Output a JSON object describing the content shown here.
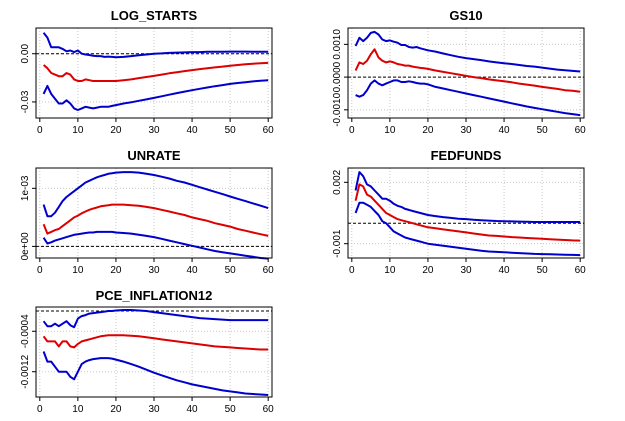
{
  "chart_data": [
    {
      "type": "line",
      "title": "LOG_STARTS",
      "x": [
        1,
        2,
        3,
        4,
        5,
        6,
        7,
        8,
        9,
        10,
        11,
        12,
        13,
        14,
        15,
        16,
        17,
        18,
        19,
        20,
        22,
        24,
        26,
        28,
        30,
        32,
        34,
        36,
        38,
        40,
        42,
        44,
        46,
        48,
        50,
        52,
        54,
        56,
        58,
        60
      ],
      "xticks": [
        0,
        10,
        20,
        30,
        40,
        50,
        60
      ],
      "yticks": [
        0.0,
        -0.03
      ],
      "ytick_labels": [
        "0.00",
        "-0.03"
      ],
      "ylim": [
        -0.04,
        0.016
      ],
      "xlim": [
        -1,
        61
      ],
      "zero_line": true,
      "grid": true,
      "series": [
        {
          "color": "#0000cc",
          "values": [
            0.013,
            0.01,
            0.004,
            0.004,
            0.004,
            0.003,
            0.0015,
            0.002,
            0.001,
            0.002,
            0.0,
            -0.0005,
            -0.0008,
            -0.0013,
            -0.0015,
            -0.0015,
            -0.002,
            -0.0018,
            -0.002,
            -0.0022,
            -0.002,
            -0.0015,
            -0.001,
            -0.0005,
            0.0,
            0.0002,
            0.0005,
            0.0007,
            0.0008,
            0.001,
            0.001,
            0.0012,
            0.0012,
            0.0012,
            0.0013,
            0.0013,
            0.0013,
            0.0012,
            0.0012,
            0.0012
          ]
        },
        {
          "color": "#dd0000",
          "values": [
            -0.007,
            -0.009,
            -0.012,
            -0.013,
            -0.014,
            -0.014,
            -0.012,
            -0.013,
            -0.016,
            -0.017,
            -0.017,
            -0.016,
            -0.0165,
            -0.017,
            -0.017,
            -0.017,
            -0.017,
            -0.017,
            -0.017,
            -0.017,
            -0.0165,
            -0.016,
            -0.0152,
            -0.0145,
            -0.0138,
            -0.013,
            -0.0122,
            -0.0115,
            -0.0108,
            -0.0102,
            -0.0096,
            -0.009,
            -0.0085,
            -0.008,
            -0.0075,
            -0.007,
            -0.0066,
            -0.0062,
            -0.0059,
            -0.0057
          ]
        },
        {
          "color": "#0000cc",
          "values": [
            -0.025,
            -0.02,
            -0.025,
            -0.028,
            -0.031,
            -0.031,
            -0.029,
            -0.031,
            -0.034,
            -0.035,
            -0.034,
            -0.033,
            -0.0335,
            -0.034,
            -0.0335,
            -0.033,
            -0.033,
            -0.033,
            -0.0325,
            -0.032,
            -0.031,
            -0.0302,
            -0.0293,
            -0.0284,
            -0.0275,
            -0.0265,
            -0.0255,
            -0.0245,
            -0.0236,
            -0.0227,
            -0.0218,
            -0.021,
            -0.0202,
            -0.0195,
            -0.0188,
            -0.0182,
            -0.0177,
            -0.0172,
            -0.0168,
            -0.0165
          ]
        }
      ]
    },
    {
      "type": "line",
      "title": "GS10",
      "x": [
        1,
        2,
        3,
        4,
        5,
        6,
        7,
        8,
        9,
        10,
        11,
        12,
        13,
        14,
        15,
        16,
        17,
        18,
        19,
        20,
        22,
        24,
        26,
        28,
        30,
        32,
        34,
        36,
        38,
        40,
        42,
        44,
        46,
        48,
        50,
        52,
        54,
        56,
        58,
        60
      ],
      "xticks": [
        0,
        10,
        20,
        30,
        40,
        50,
        60
      ],
      "yticks": [
        0.001,
        0.0,
        -0.001
      ],
      "ytick_labels": [
        "0.0010",
        "0.0000",
        "-0.0010"
      ],
      "ylim": [
        -0.00125,
        0.0015
      ],
      "xlim": [
        -1,
        61
      ],
      "zero_line": true,
      "grid": true,
      "series": [
        {
          "color": "#0000cc",
          "values": [
            0.00095,
            0.0012,
            0.0011,
            0.0012,
            0.00135,
            0.00138,
            0.0013,
            0.00115,
            0.0011,
            0.00112,
            0.00108,
            0.00105,
            0.00098,
            0.00098,
            0.00092,
            0.0009,
            0.00092,
            0.00088,
            0.00085,
            0.00082,
            0.00078,
            0.00072,
            0.00067,
            0.00062,
            0.00058,
            0.00055,
            0.00052,
            0.00048,
            0.00045,
            0.00042,
            0.0004,
            0.00037,
            0.00034,
            0.00032,
            0.00029,
            0.00026,
            0.00023,
            0.00021,
            0.00019,
            0.00017
          ]
        },
        {
          "color": "#dd0000",
          "values": [
            0.0002,
            0.00045,
            0.0004,
            0.0005,
            0.0007,
            0.00085,
            0.0006,
            0.0005,
            0.00045,
            0.00048,
            0.00045,
            0.0004,
            0.00038,
            0.00035,
            0.00035,
            0.00032,
            0.0003,
            0.00028,
            0.00027,
            0.00025,
            0.0002,
            0.00016,
            0.00012,
            8e-05,
            4e-05,
            0.0,
            -3e-05,
            -7e-05,
            -0.0001,
            -0.00013,
            -0.00016,
            -0.0002,
            -0.00023,
            -0.00026,
            -0.0003,
            -0.00033,
            -0.00036,
            -0.0004,
            -0.00042,
            -0.00045
          ]
        },
        {
          "color": "#0000cc",
          "values": [
            -0.00055,
            -0.0006,
            -0.00055,
            -0.0004,
            -0.0002,
            -0.0001,
            -0.0002,
            -0.00025,
            -0.0002,
            -0.00015,
            -0.0001,
            -0.0001,
            -0.00015,
            -0.00015,
            -0.00013,
            -0.00015,
            -0.00018,
            -0.0002,
            -0.0002,
            -0.00022,
            -0.0003,
            -0.00035,
            -0.0004,
            -0.00045,
            -0.0005,
            -0.00055,
            -0.0006,
            -0.00065,
            -0.0007,
            -0.00075,
            -0.0008,
            -0.00085,
            -0.0009,
            -0.00094,
            -0.00098,
            -0.00102,
            -0.00106,
            -0.0011,
            -0.00113,
            -0.00116
          ]
        }
      ]
    },
    {
      "type": "line",
      "title": "UNRATE",
      "x": [
        1,
        2,
        3,
        4,
        5,
        6,
        7,
        8,
        9,
        10,
        11,
        12,
        13,
        14,
        15,
        16,
        17,
        18,
        19,
        20,
        22,
        24,
        26,
        28,
        30,
        32,
        34,
        36,
        38,
        40,
        42,
        44,
        46,
        48,
        50,
        52,
        54,
        56,
        58,
        60
      ],
      "xticks": [
        0,
        10,
        20,
        30,
        40,
        50,
        60
      ],
      "yticks": [
        0.001,
        0.0
      ],
      "ytick_labels": [
        "1e-03",
        "0e+00"
      ],
      "ylim": [
        -0.0002,
        0.00135
      ],
      "xlim": [
        -1,
        61
      ],
      "zero_line": true,
      "grid": true,
      "series": [
        {
          "color": "#0000cc",
          "values": [
            0.00072,
            0.00052,
            0.00052,
            0.00058,
            0.00068,
            0.00078,
            0.00085,
            0.0009,
            0.00095,
            0.001,
            0.00105,
            0.0011,
            0.00113,
            0.00116,
            0.00119,
            0.00121,
            0.00123,
            0.00125,
            0.00126,
            0.00127,
            0.00128,
            0.00128,
            0.00127,
            0.00125,
            0.00123,
            0.0012,
            0.00117,
            0.00113,
            0.0011,
            0.00106,
            0.00102,
            0.00098,
            0.00094,
            0.0009,
            0.00086,
            0.00082,
            0.00078,
            0.00074,
            0.0007,
            0.00066
          ]
        },
        {
          "color": "#dd0000",
          "values": [
            0.00038,
            0.00022,
            0.00025,
            0.00028,
            0.0003,
            0.00035,
            0.0004,
            0.00045,
            0.0005,
            0.00053,
            0.00057,
            0.0006,
            0.00063,
            0.00065,
            0.00067,
            0.00069,
            0.0007,
            0.00071,
            0.00072,
            0.00072,
            0.00072,
            0.00071,
            0.0007,
            0.00068,
            0.00066,
            0.00063,
            0.0006,
            0.00057,
            0.00054,
            0.0005,
            0.00047,
            0.00044,
            0.0004,
            0.00037,
            0.00034,
            0.0003,
            0.00027,
            0.00024,
            0.00021,
            0.00018
          ]
        },
        {
          "color": "#0000cc",
          "values": [
            0.00015,
            5e-05,
            7e-05,
            0.0001,
            0.00012,
            0.00014,
            0.00016,
            0.00018,
            0.0002,
            0.00021,
            0.00022,
            0.00023,
            0.00024,
            0.00024,
            0.00025,
            0.00025,
            0.00025,
            0.00025,
            0.00025,
            0.00024,
            0.00023,
            0.00022,
            0.0002,
            0.00018,
            0.00016,
            0.00013,
            0.0001,
            7e-05,
            4e-05,
            1e-05,
            -2e-05,
            -5e-05,
            -8e-05,
            -0.0001,
            -0.00012,
            -0.00014,
            -0.00016,
            -0.00018,
            -0.0002,
            -0.00021
          ]
        }
      ]
    },
    {
      "type": "line",
      "title": "FEDFUNDS",
      "x": [
        1,
        2,
        3,
        4,
        5,
        6,
        7,
        8,
        9,
        10,
        11,
        12,
        13,
        14,
        15,
        16,
        17,
        18,
        19,
        20,
        22,
        24,
        26,
        28,
        30,
        32,
        34,
        36,
        38,
        40,
        42,
        44,
        46,
        48,
        50,
        52,
        54,
        56,
        58,
        60
      ],
      "xticks": [
        0,
        10,
        20,
        30,
        40,
        50,
        60
      ],
      "yticks": [
        0.002,
        -0.001
      ],
      "ytick_labels": [
        "0.002",
        "-0.001"
      ],
      "ylim": [
        -0.0017,
        0.0027
      ],
      "xlim": [
        -1,
        61
      ],
      "zero_line": true,
      "grid": true,
      "series": [
        {
          "color": "#0000cc",
          "values": [
            0.0016,
            0.0025,
            0.0023,
            0.0019,
            0.0018,
            0.0016,
            0.0014,
            0.0012,
            0.0012,
            0.0011,
            0.00095,
            0.00085,
            0.0008,
            0.0007,
            0.00065,
            0.0006,
            0.00055,
            0.0005,
            0.00045,
            0.0004,
            0.00035,
            0.0003,
            0.00026,
            0.00022,
            0.0002,
            0.00017,
            0.00015,
            0.00013,
            0.00011,
            0.0001,
            9e-05,
            8e-05,
            7e-05,
            6e-05,
            6e-05,
            6e-05,
            6e-05,
            6e-05,
            6e-05,
            6e-05
          ]
        },
        {
          "color": "#dd0000",
          "values": [
            0.0011,
            0.0019,
            0.0018,
            0.0014,
            0.0013,
            0.0011,
            0.0009,
            0.0007,
            0.0005,
            0.0004,
            0.0003,
            0.0002,
            0.00015,
            0.0001,
            5e-05,
            0.0,
            -5e-05,
            -0.0001,
            -0.00015,
            -0.0002,
            -0.00025,
            -0.0003,
            -0.00035,
            -0.0004,
            -0.00045,
            -0.0005,
            -0.00055,
            -0.0006,
            -0.00062,
            -0.00065,
            -0.00068,
            -0.0007,
            -0.00072,
            -0.00074,
            -0.00076,
            -0.00078,
            -0.0008,
            -0.00082,
            -0.00084,
            -0.00085
          ]
        },
        {
          "color": "#0000cc",
          "values": [
            0.0005,
            0.001,
            0.001,
            0.0009,
            0.0008,
            0.0006,
            0.0004,
            0.0001,
            0.0,
            -0.0002,
            -0.0004,
            -0.0005,
            -0.0006,
            -0.0007,
            -0.00075,
            -0.0008,
            -0.00085,
            -0.0009,
            -0.00095,
            -0.001,
            -0.00105,
            -0.0011,
            -0.00115,
            -0.0012,
            -0.00125,
            -0.0013,
            -0.00135,
            -0.00138,
            -0.0014,
            -0.00142,
            -0.00144,
            -0.00146,
            -0.00148,
            -0.0015,
            -0.00151,
            -0.00152,
            -0.00153,
            -0.00154,
            -0.00155,
            -0.00156
          ]
        }
      ]
    },
    {
      "type": "line",
      "title": "PCE_INFLATION12",
      "x": [
        1,
        2,
        3,
        4,
        5,
        6,
        7,
        8,
        9,
        10,
        11,
        12,
        13,
        14,
        15,
        16,
        17,
        18,
        19,
        20,
        22,
        24,
        26,
        28,
        30,
        32,
        34,
        36,
        38,
        40,
        42,
        44,
        46,
        48,
        50,
        52,
        54,
        56,
        58,
        60
      ],
      "xticks": [
        0,
        10,
        20,
        30,
        40,
        50,
        60
      ],
      "yticks": [
        -0.0004,
        -0.0012
      ],
      "ytick_labels": [
        "-0.0004",
        "-0.0012"
      ],
      "ylim": [
        -0.0017,
        8e-05
      ],
      "xlim": [
        -1,
        61
      ],
      "zero_line": true,
      "grid": true,
      "series": [
        {
          "color": "#0000cc",
          "values": [
            -0.0002,
            -0.0003,
            -0.0003,
            -0.00025,
            -0.0003,
            -0.00025,
            -0.0002,
            -0.00028,
            -0.00032,
            -0.00015,
            -0.0001,
            -8e-05,
            -5e-05,
            -4e-05,
            -3e-05,
            -2e-05,
            -1e-05,
            0.0,
            0.0,
            1e-05,
            2e-05,
            2e-05,
            1e-05,
            0.0,
            -2e-05,
            -4e-05,
            -6e-05,
            -8e-05,
            -0.0001,
            -0.00012,
            -0.00014,
            -0.00015,
            -0.00016,
            -0.00017,
            -0.00018,
            -0.00018,
            -0.00018,
            -0.00018,
            -0.00018,
            -0.00018
          ]
        },
        {
          "color": "#dd0000",
          "values": [
            -0.0005,
            -0.0006,
            -0.0006,
            -0.0006,
            -0.0007,
            -0.0006,
            -0.0006,
            -0.0007,
            -0.00072,
            -0.00065,
            -0.0006,
            -0.00058,
            -0.00056,
            -0.00054,
            -0.00052,
            -0.0005,
            -0.00049,
            -0.00048,
            -0.00048,
            -0.00048,
            -0.00048,
            -0.00049,
            -0.0005,
            -0.00052,
            -0.00054,
            -0.00056,
            -0.00058,
            -0.0006,
            -0.00062,
            -0.00064,
            -0.00066,
            -0.00068,
            -0.0007,
            -0.00071,
            -0.00072,
            -0.00073,
            -0.00074,
            -0.00075,
            -0.00076,
            -0.00076
          ]
        },
        {
          "color": "#0000cc",
          "values": [
            -0.0008,
            -0.001,
            -0.001,
            -0.0011,
            -0.0012,
            -0.0012,
            -0.0012,
            -0.0013,
            -0.00135,
            -0.0012,
            -0.00105,
            -0.001,
            -0.00097,
            -0.00095,
            -0.00094,
            -0.00093,
            -0.00093,
            -0.00093,
            -0.00094,
            -0.00096,
            -0.001,
            -0.00105,
            -0.0011,
            -0.00116,
            -0.00122,
            -0.00127,
            -0.00132,
            -0.00137,
            -0.00141,
            -0.00145,
            -0.00148,
            -0.00151,
            -0.00154,
            -0.00157,
            -0.00159,
            -0.00161,
            -0.00163,
            -0.00164,
            -0.00165,
            -0.00166
          ]
        }
      ]
    }
  ]
}
